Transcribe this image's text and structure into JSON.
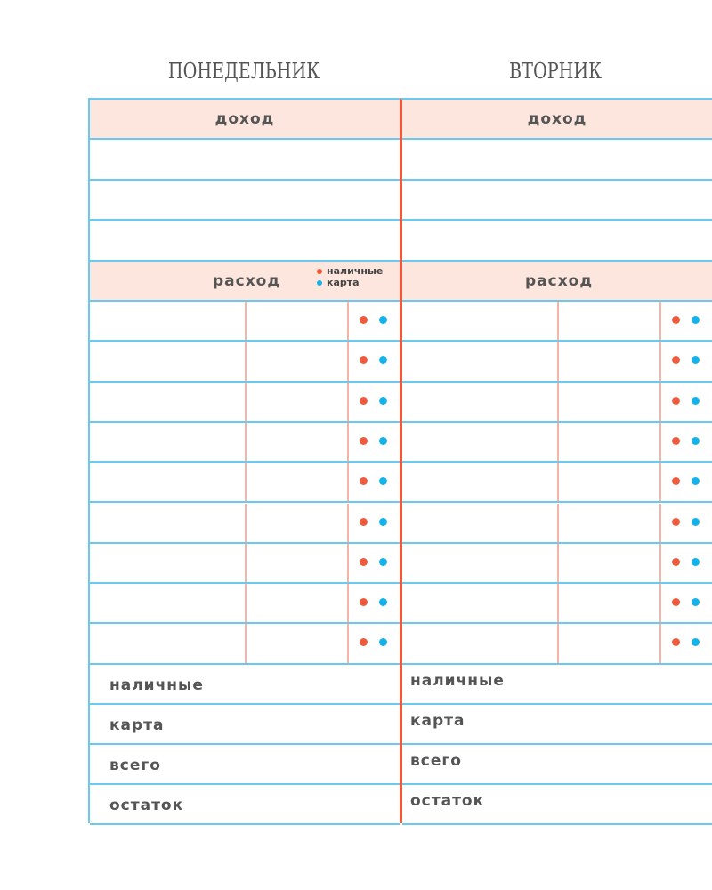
{
  "colors": {
    "cash": "#f05a3c",
    "card": "#14b2ea",
    "header_bg": "#fde6dd",
    "grid": "#6cc8ee",
    "divider": "#f05a3c"
  },
  "legend": {
    "cash": "наличные",
    "card": "карта"
  },
  "days": [
    {
      "title": "ПОНЕДЕЛЬНИК",
      "income_label": "доход",
      "expense_label": "расход",
      "summary": [
        "наличные",
        "карта",
        "всего",
        "остаток"
      ]
    },
    {
      "title": "ВТОРНИК",
      "income_label": "доход",
      "expense_label": "расход",
      "summary": [
        "наличные",
        "карта",
        "всего",
        "остаток"
      ]
    }
  ]
}
